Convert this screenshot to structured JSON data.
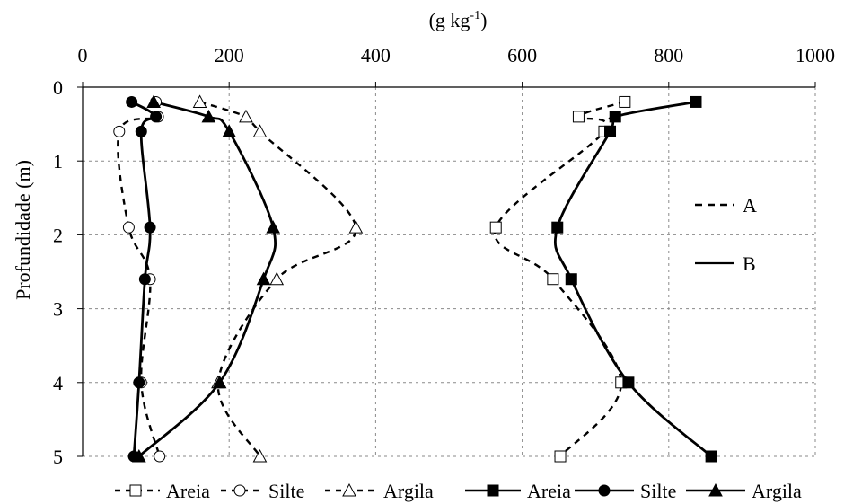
{
  "chart_data": {
    "type": "line",
    "orientation": "depth-profile",
    "xlabel": "(g kg-1)",
    "xlabel_main": "(g kg",
    "xlabel_sup": "-1",
    "xlabel_close": ")",
    "ylabel": "Profundidade (m)",
    "xlim": [
      0,
      1000
    ],
    "ylim": [
      5,
      0
    ],
    "x_axis_position": "top",
    "y_inverted": true,
    "x_ticks": [
      "0",
      "200",
      "400",
      "600",
      "800",
      "1000"
    ],
    "y_ticks": [
      "0",
      "1",
      "2",
      "3",
      "4",
      "5"
    ],
    "grid": "dashed",
    "inline_legend": [
      {
        "label": "A",
        "style": "dashed"
      },
      {
        "label": "B",
        "style": "solid"
      }
    ],
    "series": [
      {
        "name": "Areia",
        "profile": "A",
        "marker": "square-open",
        "line": "dashed",
        "points": [
          [
            740,
            0.2
          ],
          [
            677,
            0.4
          ],
          [
            712,
            0.6
          ],
          [
            564,
            1.9
          ],
          [
            642,
            2.6
          ],
          [
            735,
            4.0
          ],
          [
            652,
            5.0
          ]
        ]
      },
      {
        "name": "Silte",
        "profile": "A",
        "marker": "circle-open",
        "line": "dashed",
        "points": [
          [
            100,
            0.2
          ],
          [
            103,
            0.4
          ],
          [
            50,
            0.6
          ],
          [
            63,
            1.9
          ],
          [
            92,
            2.6
          ],
          [
            80,
            4.0
          ],
          [
            105,
            5.0
          ]
        ]
      },
      {
        "name": "Argila",
        "profile": "A",
        "marker": "triangle-open",
        "line": "dashed",
        "points": [
          [
            160,
            0.2
          ],
          [
            223,
            0.4
          ],
          [
            242,
            0.6
          ],
          [
            373,
            1.9
          ],
          [
            265,
            2.6
          ],
          [
            185,
            4.0
          ],
          [
            242,
            5.0
          ]
        ]
      },
      {
        "name": "Areia",
        "profile": "B",
        "marker": "square-filled",
        "line": "solid",
        "points": [
          [
            837,
            0.2
          ],
          [
            727,
            0.4
          ],
          [
            720,
            0.6
          ],
          [
            648,
            1.9
          ],
          [
            667,
            2.6
          ],
          [
            745,
            4.0
          ],
          [
            858,
            5.0
          ]
        ]
      },
      {
        "name": "Silte",
        "profile": "B",
        "marker": "circle-filled",
        "line": "solid",
        "points": [
          [
            67,
            0.2
          ],
          [
            100,
            0.4
          ],
          [
            80,
            0.6
          ],
          [
            92,
            1.9
          ],
          [
            85,
            2.6
          ],
          [
            77,
            4.0
          ],
          [
            70,
            5.0
          ]
        ]
      },
      {
        "name": "Argila",
        "profile": "B",
        "marker": "triangle-filled",
        "line": "solid",
        "points": [
          [
            97,
            0.2
          ],
          [
            172,
            0.4
          ],
          [
            200,
            0.6
          ],
          [
            260,
            1.9
          ],
          [
            247,
            2.6
          ],
          [
            187,
            4.0
          ],
          [
            77,
            5.0
          ]
        ]
      }
    ]
  }
}
